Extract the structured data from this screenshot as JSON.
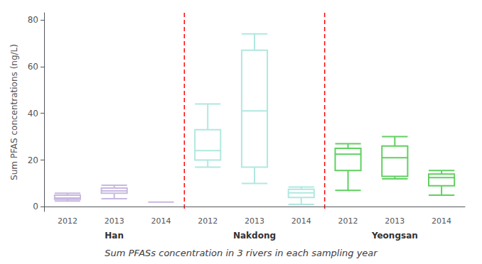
{
  "chart_data": {
    "type": "boxplot",
    "title": "Sum PFASs concentration in 3 rivers in each sampling year",
    "ylabel": "Sum PFAS concentrations (ng/L)",
    "categories": [
      "2012",
      "2013",
      "2014",
      "2012",
      "2013",
      "2014",
      "2012",
      "2013",
      "2014"
    ],
    "values": [
      [
        2.5,
        3.2,
        3.8,
        5.0,
        5.8
      ],
      [
        3.5,
        5.8,
        6.8,
        8.0,
        9.2
      ],
      [
        2.0,
        2.0,
        2.0,
        2.0,
        2.0
      ],
      [
        17.0,
        20.0,
        24.0,
        33.0,
        44.0
      ],
      [
        10.0,
        17.0,
        41.0,
        67.0,
        74.0
      ],
      [
        1.0,
        4.0,
        6.0,
        7.5,
        8.5
      ],
      [
        7.0,
        15.5,
        22.5,
        25.0,
        27.0
      ],
      [
        12.0,
        13.0,
        21.0,
        26.0,
        30.0
      ],
      [
        5.0,
        9.0,
        12.5,
        14.0,
        15.5
      ]
    ],
    "colors": [
      "#c8b8e0",
      "#c8b8e0",
      "#c8b8e0",
      "#b0e8e0",
      "#b0e8e0",
      "#b0e8e0",
      "#60d060",
      "#60d060",
      "#60d060"
    ],
    "annotations": [
      "Han",
      "Nakdong",
      "Yeongsan"
    ],
    "ylim": [
      -2,
      83
    ],
    "yticks": [
      0,
      20,
      40,
      60,
      80
    ],
    "grid": false
  }
}
